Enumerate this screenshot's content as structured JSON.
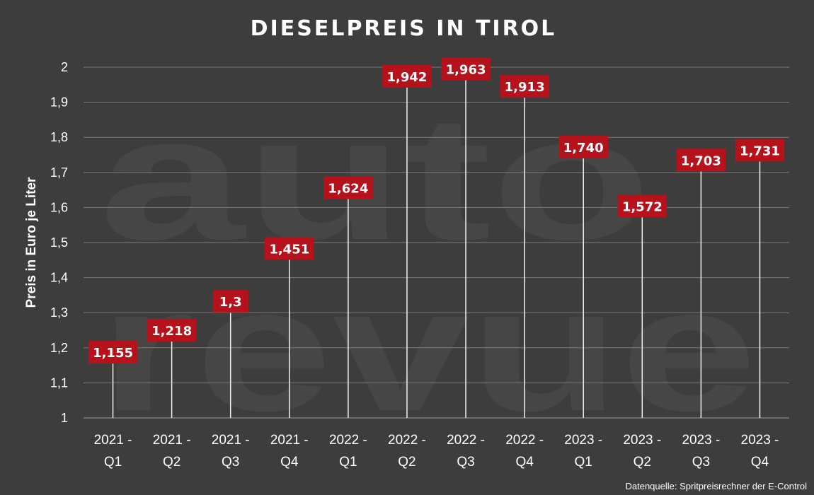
{
  "chart_data": {
    "type": "bar",
    "title": "DIESELPREIS IN TIROL",
    "ylabel": "Preis in Euro je Liter",
    "xlabel": "",
    "ylim": [
      1,
      2
    ],
    "yticks": [
      1,
      1.1,
      1.2,
      1.3,
      1.4,
      1.5,
      1.6,
      1.7,
      1.8,
      1.9,
      2
    ],
    "ytick_labels": [
      "1",
      "1,1",
      "1,2",
      "1,3",
      "1,4",
      "1,5",
      "1,6",
      "1,7",
      "1,8",
      "1,9",
      "2"
    ],
    "grid": true,
    "categories": [
      [
        "2021 -",
        "Q1"
      ],
      [
        "2021 -",
        "Q2"
      ],
      [
        "2021 -",
        "Q3"
      ],
      [
        "2021 -",
        "Q4"
      ],
      [
        "2022 -",
        "Q1"
      ],
      [
        "2022 -",
        "Q2"
      ],
      [
        "2022 -",
        "Q3"
      ],
      [
        "2022 -",
        "Q4"
      ],
      [
        "2023 -",
        "Q1"
      ],
      [
        "2023 -",
        "Q2"
      ],
      [
        "2023 -",
        "Q3"
      ],
      [
        "2023 -",
        "Q4"
      ]
    ],
    "values": [
      1.155,
      1.218,
      1.3,
      1.451,
      1.624,
      1.942,
      1.963,
      1.913,
      1.74,
      1.572,
      1.703,
      1.731
    ],
    "value_labels": [
      "1,155",
      "1,218",
      "1,3",
      "1,451",
      "1,624",
      "1,942",
      "1,963",
      "1,913",
      "1,740",
      "1,572",
      "1,703",
      "1,731"
    ],
    "source": "Datenquelle: Spritpreisrechner der E-Control"
  },
  "watermark_text": [
    "auto",
    "revue"
  ],
  "colors": {
    "background": "#3d3d3d",
    "grid": "#7a7a7a",
    "label_box": "#b5121b",
    "text": "#ffffff"
  }
}
